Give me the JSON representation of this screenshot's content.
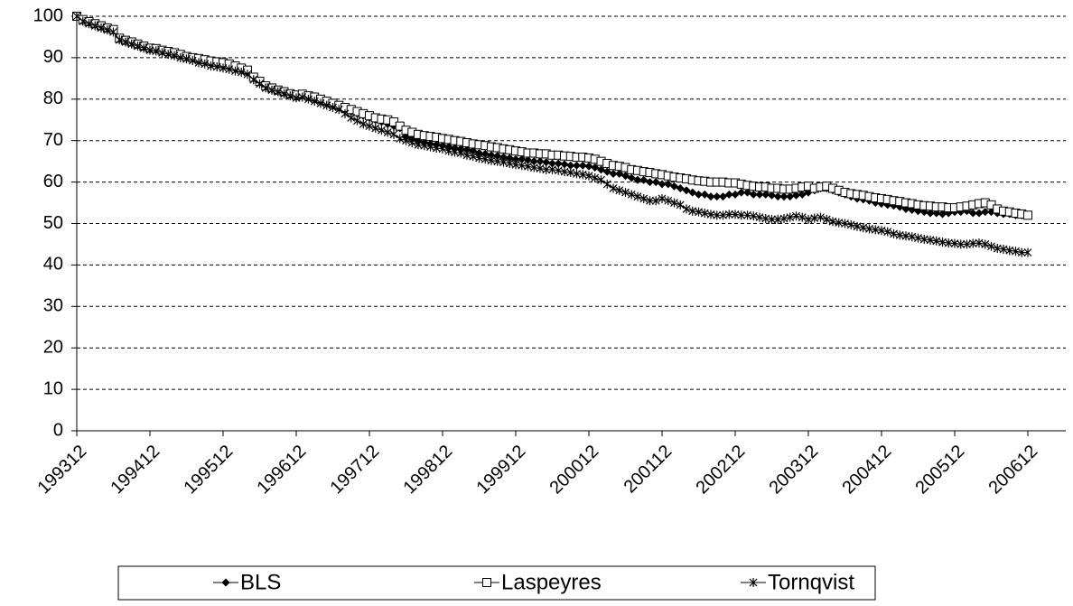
{
  "chart_data": {
    "type": "line",
    "categories": [
      "199312",
      null,
      null,
      null,
      null,
      null,
      null,
      null,
      null,
      null,
      null,
      null,
      "199412",
      null,
      null,
      null,
      null,
      null,
      null,
      null,
      null,
      null,
      null,
      null,
      "199512",
      null,
      null,
      null,
      null,
      null,
      null,
      null,
      null,
      null,
      null,
      null,
      "199612",
      null,
      null,
      null,
      null,
      null,
      null,
      null,
      null,
      null,
      null,
      null,
      "199712",
      null,
      null,
      null,
      null,
      null,
      null,
      null,
      null,
      null,
      null,
      null,
      "199812",
      null,
      null,
      null,
      null,
      null,
      null,
      null,
      null,
      null,
      null,
      null,
      "199912",
      null,
      null,
      null,
      null,
      null,
      null,
      null,
      null,
      null,
      null,
      null,
      "200012",
      null,
      null,
      null,
      null,
      null,
      null,
      null,
      null,
      null,
      null,
      null,
      "200112",
      null,
      null,
      null,
      null,
      null,
      null,
      null,
      null,
      null,
      null,
      null,
      "200212",
      null,
      null,
      null,
      null,
      null,
      null,
      null,
      null,
      null,
      null,
      null,
      "200312",
      null,
      null,
      null,
      null,
      null,
      null,
      null,
      null,
      null,
      null,
      null,
      "200412",
      null,
      null,
      null,
      null,
      null,
      null,
      null,
      null,
      null,
      null,
      null,
      "200512",
      null,
      null,
      null,
      null,
      null,
      null,
      null,
      null,
      null,
      null,
      null,
      "200612"
    ],
    "series": [
      {
        "name": "BLS",
        "color": "#000000",
        "marker": "diamond",
        "values": [
          100,
          99,
          98.5,
          98,
          97.5,
          97,
          96.5,
          94.5,
          94,
          93.5,
          93,
          92.5,
          92,
          92,
          91.5,
          91.2,
          91,
          90.5,
          90,
          89.8,
          89.5,
          89.2,
          89,
          88.8,
          88.5,
          88,
          87.5,
          87,
          86.5,
          85,
          84,
          83,
          82.5,
          82,
          81.5,
          81,
          80.5,
          81,
          80.5,
          80,
          79.5,
          79,
          78.5,
          78,
          77.5,
          77,
          76.5,
          76,
          75.5,
          75,
          74.5,
          74,
          73.5,
          73,
          71,
          70.5,
          70,
          69.5,
          69.2,
          69,
          68.8,
          68.5,
          68.2,
          68,
          67.8,
          67.5,
          67,
          66.8,
          66.5,
          66.3,
          66,
          65.8,
          65.5,
          65.5,
          65.3,
          65,
          65,
          64.8,
          64.5,
          64.5,
          64.3,
          64,
          64,
          64,
          63.8,
          63.5,
          63,
          62.5,
          62,
          62,
          61.5,
          61,
          60.5,
          60.5,
          60,
          60,
          59.5,
          59.5,
          59,
          58.5,
          58,
          57.5,
          57,
          57,
          56.5,
          56.5,
          56.5,
          57,
          57,
          57.5,
          57.5,
          57,
          57,
          57,
          56.8,
          56.5,
          56.5,
          56.5,
          56.8,
          57,
          57.5,
          58,
          58.5,
          58.5,
          58,
          57.5,
          57,
          56.5,
          56,
          55.8,
          55.5,
          55,
          54.8,
          54.5,
          54.3,
          54,
          53.5,
          53.3,
          53,
          52.8,
          52.5,
          52.5,
          52.3,
          52.5,
          52.8,
          52.8,
          53,
          52.5,
          52.5,
          52.8,
          52.8,
          52.5,
          52.3,
          52.3,
          52,
          52,
          52
        ]
      },
      {
        "name": "Laspeyres",
        "color": "#000000",
        "marker": "square",
        "values": [
          100,
          99.2,
          98.7,
          98.2,
          97.7,
          97.2,
          96.8,
          94.7,
          94.2,
          93.8,
          93.3,
          92.8,
          92.3,
          92.2,
          91.8,
          91.5,
          91.2,
          90.8,
          90.3,
          90,
          89.8,
          89.5,
          89.2,
          89,
          88.8,
          88.5,
          88,
          87.5,
          87,
          85.3,
          84.3,
          83.2,
          82.7,
          82.2,
          81.8,
          81.3,
          81,
          81.2,
          80.8,
          80.5,
          80,
          79.5,
          79,
          78.5,
          78,
          77.5,
          77,
          76.5,
          76,
          75.5,
          75.2,
          75,
          74.5,
          73.5,
          72.5,
          72,
          71.5,
          71.2,
          71,
          70.8,
          70.5,
          70.3,
          70,
          69.8,
          69.5,
          69.2,
          69,
          68.8,
          68.5,
          68.3,
          68,
          67.8,
          67.5,
          67.3,
          67,
          67,
          66.8,
          66.8,
          66.5,
          66.5,
          66.3,
          66.2,
          66,
          66,
          65.8,
          65.5,
          65,
          64.5,
          64,
          63.8,
          63.5,
          63,
          62.8,
          62.5,
          62.3,
          62,
          61.8,
          61.5,
          61.2,
          61,
          60.8,
          60.5,
          60.3,
          60.2,
          60,
          60,
          60,
          59.8,
          59.8,
          59.5,
          59.2,
          59,
          58.8,
          58.8,
          58.5,
          58.5,
          58.3,
          58.3,
          58.5,
          58.8,
          59,
          58.5,
          58.8,
          59,
          58.5,
          58,
          57.5,
          57.2,
          57,
          56.8,
          56.5,
          56.2,
          56,
          55.8,
          55.5,
          55.3,
          55,
          54.8,
          54.5,
          54.3,
          54.2,
          54,
          54,
          53.8,
          53.8,
          54,
          54.2,
          54.5,
          54.8,
          55,
          54.5,
          53.5,
          53,
          52.8,
          52.5,
          52.3,
          52
        ]
      },
      {
        "name": "Tornqvist",
        "color": "#000000",
        "marker": "asterisk",
        "values": [
          100,
          98.8,
          98.2,
          97.7,
          97.2,
          96.7,
          96.2,
          94.3,
          93.8,
          93.3,
          92.8,
          92.3,
          91.8,
          91.6,
          91.2,
          90.8,
          90.5,
          90,
          89.7,
          89.3,
          88.8,
          88.5,
          88,
          87.8,
          87.5,
          87.2,
          86.8,
          86.5,
          86,
          84.7,
          83.7,
          82.7,
          82.2,
          81.8,
          81.3,
          80.8,
          80.3,
          80.5,
          80,
          79.5,
          79,
          78.5,
          78,
          77.5,
          76.5,
          75.5,
          74.8,
          74,
          73.5,
          73,
          72.5,
          72,
          71.5,
          70.5,
          70,
          69.5,
          69,
          68.8,
          68.5,
          68.2,
          68,
          67.5,
          67.2,
          67,
          66.5,
          66.2,
          65.8,
          65.5,
          65.2,
          65,
          64.8,
          64.5,
          64.2,
          64,
          63.8,
          63.5,
          63.3,
          63,
          63,
          62.8,
          62.5,
          62.3,
          62,
          61.8,
          61.5,
          61,
          60.5,
          59.5,
          58.5,
          58,
          57.5,
          57,
          56.5,
          56,
          55.5,
          55.5,
          56,
          55.5,
          55,
          54.5,
          53.5,
          53,
          52.8,
          52.5,
          52.2,
          52,
          52,
          52.2,
          52.2,
          52,
          52,
          51.8,
          51.5,
          51.2,
          51,
          51,
          51.2,
          51.5,
          51.8,
          51.5,
          51,
          51.3,
          51.5,
          51,
          50.5,
          50.2,
          50,
          49.7,
          49.3,
          49,
          48.7,
          48.5,
          48.3,
          48,
          47.5,
          47.2,
          47,
          46.8,
          46.5,
          46.2,
          46,
          45.8,
          45.5,
          45.3,
          45.2,
          45,
          45,
          45.2,
          45.3,
          45,
          44.5,
          44,
          43.8,
          43.5,
          43.3,
          43,
          43
        ]
      }
    ],
    "ylim": [
      0,
      100
    ],
    "yticks": [
      0,
      10,
      20,
      30,
      40,
      50,
      60,
      70,
      80,
      90,
      100
    ],
    "grid": true,
    "legend": "bottom"
  }
}
